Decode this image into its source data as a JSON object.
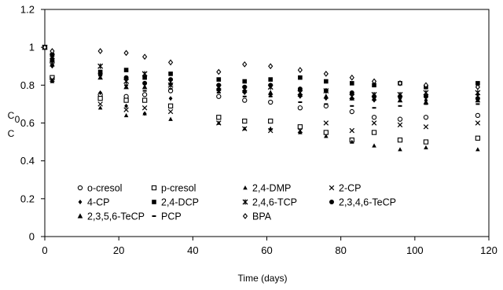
{
  "chart_data": {
    "type": "scatter",
    "title": "",
    "xlabel": "Time (days)",
    "ylabel_top": "C",
    "ylabel_bottom": "C",
    "ylabel_subscript": "0",
    "xlim": [
      0,
      120
    ],
    "ylim": [
      0,
      1.2
    ],
    "xticks": [
      0,
      20,
      40,
      60,
      80,
      100,
      120
    ],
    "yticks": [
      0,
      0.2,
      0.4,
      0.6,
      0.8,
      1,
      1.2
    ],
    "xtick_labels": [
      "0",
      "20",
      "40",
      "60",
      "80",
      "100",
      "120"
    ],
    "ytick_labels": [
      "0",
      "0.2",
      "0.4",
      "0.6",
      "0.8",
      "1",
      "1.2"
    ],
    "grid": false,
    "legend_placement": "bottom-left",
    "series": [
      {
        "name": "o-cresol",
        "marker": "open-circle",
        "x": [
          0,
          2,
          15,
          22,
          27,
          34,
          47,
          54,
          61,
          69,
          76,
          83,
          89,
          96,
          103,
          117
        ],
        "y": [
          1.0,
          0.92,
          0.75,
          0.74,
          0.75,
          0.77,
          0.74,
          0.72,
          0.71,
          0.68,
          0.69,
          0.66,
          0.63,
          0.62,
          0.63,
          0.64
        ]
      },
      {
        "name": "p-cresol",
        "marker": "open-square",
        "x": [
          0,
          2,
          15,
          22,
          27,
          34,
          47,
          54,
          61,
          69,
          76,
          83,
          89,
          96,
          103,
          117
        ],
        "y": [
          1.0,
          0.84,
          0.73,
          0.72,
          0.72,
          0.69,
          0.63,
          0.61,
          0.61,
          0.58,
          0.55,
          0.51,
          0.55,
          0.51,
          0.5,
          0.52
        ]
      },
      {
        "name": "2,4-DMP",
        "marker": "triangle",
        "x": [
          0,
          2,
          15,
          22,
          27,
          34,
          47,
          54,
          61,
          69,
          76,
          83,
          89,
          96,
          103,
          117
        ],
        "y": [
          1.0,
          0.82,
          0.68,
          0.64,
          0.65,
          0.62,
          0.6,
          0.57,
          0.57,
          0.55,
          0.53,
          0.5,
          0.48,
          0.46,
          0.47,
          0.46
        ]
      },
      {
        "name": "2-CP",
        "marker": "x",
        "x": [
          0,
          2,
          15,
          22,
          27,
          34,
          47,
          54,
          61,
          69,
          76,
          83,
          89,
          96,
          103,
          117
        ],
        "y": [
          1.0,
          0.83,
          0.7,
          0.67,
          0.68,
          0.66,
          0.6,
          0.57,
          0.56,
          0.56,
          0.6,
          0.56,
          0.6,
          0.59,
          0.58,
          0.6
        ]
      },
      {
        "name": "4-CP",
        "marker": "diamond",
        "x": [
          0,
          2,
          15,
          22,
          27,
          34,
          47,
          54,
          61,
          69,
          76,
          83,
          89,
          96,
          103,
          117
        ],
        "y": [
          1.0,
          0.9,
          0.76,
          0.69,
          0.65,
          0.73,
          0.77,
          0.76,
          0.75,
          0.74,
          0.73,
          0.73,
          0.72,
          0.73,
          0.72,
          0.75
        ]
      },
      {
        "name": "2,4-DCP",
        "marker": "filled-square",
        "x": [
          0,
          2,
          15,
          22,
          27,
          34,
          47,
          54,
          61,
          69,
          76,
          83,
          89,
          96,
          103,
          117
        ],
        "y": [
          1.0,
          0.96,
          0.87,
          0.88,
          0.84,
          0.86,
          0.83,
          0.82,
          0.83,
          0.84,
          0.82,
          0.81,
          0.8,
          0.81,
          0.79,
          0.81
        ]
      },
      {
        "name": "2,4,6-TCP",
        "marker": "asterisk",
        "x": [
          0,
          2,
          15,
          22,
          27,
          34,
          47,
          54,
          61,
          69,
          76,
          83,
          89,
          96,
          103,
          117
        ],
        "y": [
          1.0,
          0.95,
          0.9,
          0.82,
          0.86,
          0.8,
          0.79,
          0.78,
          0.79,
          0.76,
          0.77,
          0.74,
          0.75,
          0.75,
          0.76,
          0.76
        ]
      },
      {
        "name": "2,3,4,6-TeCP",
        "marker": "filled-circle",
        "x": [
          0,
          2,
          15,
          22,
          27,
          34,
          47,
          54,
          61,
          69,
          76,
          83,
          89,
          96,
          103,
          117
        ],
        "y": [
          1.0,
          0.93,
          0.86,
          0.84,
          0.81,
          0.83,
          0.8,
          0.79,
          0.8,
          0.78,
          0.77,
          0.76,
          0.74,
          0.74,
          0.74,
          0.73
        ]
      },
      {
        "name": "2,3,5,6-TeCP",
        "marker": "filled-triangle",
        "x": [
          0,
          2,
          15,
          22,
          27,
          34,
          47,
          54,
          61,
          69,
          76,
          83,
          89,
          96,
          103,
          117
        ],
        "y": [
          1.0,
          0.91,
          0.84,
          0.79,
          0.79,
          0.81,
          0.78,
          0.77,
          0.76,
          0.75,
          0.74,
          0.73,
          0.73,
          0.72,
          0.71,
          0.72
        ]
      },
      {
        "name": "PCP",
        "marker": "dash",
        "x": [
          0,
          2,
          15,
          22,
          27,
          34,
          47,
          54,
          61,
          69,
          76,
          83,
          89,
          96,
          103,
          117
        ],
        "y": [
          1.0,
          0.94,
          0.85,
          0.8,
          0.77,
          0.78,
          0.76,
          0.74,
          0.74,
          0.71,
          0.7,
          0.69,
          0.68,
          0.69,
          0.7,
          0.7
        ]
      },
      {
        "name": "BPA",
        "marker": "open-diamond",
        "x": [
          0,
          2,
          15,
          22,
          27,
          34,
          47,
          54,
          61,
          69,
          76,
          83,
          89,
          96,
          103,
          117
        ],
        "y": [
          1.0,
          0.98,
          0.98,
          0.97,
          0.95,
          0.92,
          0.87,
          0.91,
          0.9,
          0.88,
          0.86,
          0.84,
          0.82,
          0.81,
          0.8,
          0.79
        ]
      }
    ]
  }
}
